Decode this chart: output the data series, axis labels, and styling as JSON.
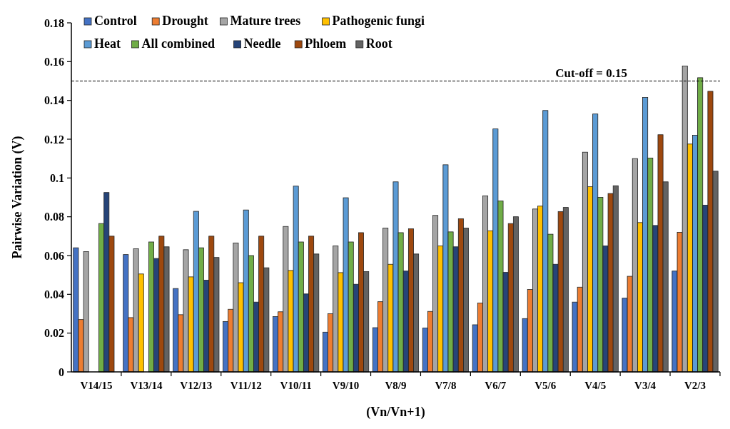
{
  "chart_data": {
    "type": "bar",
    "xlabel": "(Vn/Vn+1)",
    "ylabel": "Pairwise Variation (V)",
    "categories": [
      "V14/15",
      "V13/14",
      "V12/13",
      "V11/12",
      "V10/11",
      "V9/10",
      "V8/9",
      "V7/8",
      "V6/7",
      "V5/6",
      "V4/5",
      "V3/4",
      "V2/3"
    ],
    "series": [
      {
        "name": "Control",
        "color": "#4472c4",
        "values": [
          0.064,
          0.0605,
          0.043,
          0.026,
          0.0285,
          0.0205,
          0.0228,
          0.0226,
          0.0243,
          0.0275,
          0.036,
          0.038,
          0.052
        ]
      },
      {
        "name": "Drought",
        "color": "#ed7d31",
        "values": [
          0.027,
          0.028,
          0.0295,
          0.0323,
          0.031,
          0.03,
          0.0362,
          0.0312,
          0.0355,
          0.0425,
          0.0437,
          0.0493,
          0.072
        ]
      },
      {
        "name": "Mature trees",
        "color": "#a5a5a5",
        "values": [
          0.062,
          0.0635,
          0.063,
          0.0665,
          0.075,
          0.065,
          0.0742,
          0.0807,
          0.0908,
          0.084,
          0.1133,
          0.11,
          0.1577
        ]
      },
      {
        "name": "Pathogenic fungi",
        "color": "#ffc000",
        "values": [
          null,
          0.0505,
          0.049,
          0.046,
          0.0523,
          0.0512,
          0.0555,
          0.065,
          0.0728,
          0.0855,
          0.0955,
          0.077,
          0.1175
        ]
      },
      {
        "name": "Heat",
        "color": "#5b9bd5",
        "values": [
          null,
          null,
          0.0828,
          0.0835,
          0.0958,
          0.0898,
          0.098,
          0.1068,
          0.1253,
          0.1348,
          0.133,
          0.1415,
          0.122
        ]
      },
      {
        "name": "All combined",
        "color": "#70ad47",
        "values": [
          0.0765,
          0.067,
          0.064,
          0.06,
          0.067,
          0.067,
          0.0718,
          0.0722,
          0.0882,
          0.071,
          0.09,
          0.1103,
          0.1517
        ]
      },
      {
        "name": "Needle",
        "color": "#264478",
        "values": [
          0.0925,
          0.0585,
          0.0473,
          0.036,
          0.0402,
          0.0452,
          0.052,
          0.0645,
          0.0513,
          0.0555,
          0.065,
          0.0755,
          0.086
        ]
      },
      {
        "name": "Phloem",
        "color": "#9e480e",
        "values": [
          0.07,
          0.07,
          0.07,
          0.07,
          0.07,
          0.0718,
          0.0738,
          0.079,
          0.0765,
          0.0827,
          0.092,
          0.1223,
          0.1447
        ]
      },
      {
        "name": "Root",
        "color": "#636363",
        "values": [
          null,
          0.0645,
          0.059,
          0.0537,
          0.0608,
          0.0517,
          0.0608,
          0.0742,
          0.08,
          0.0848,
          0.096,
          0.098,
          0.1035
        ]
      }
    ],
    "ylim": [
      0,
      0.18
    ],
    "yticks": [
      0,
      0.02,
      0.04,
      0.06,
      0.08,
      0.1,
      0.12,
      0.14,
      0.16,
      0.18
    ],
    "ref_lines": [
      {
        "axis": "y",
        "value": 0.15,
        "label": "Cut-off = 0.15",
        "color": "#000000",
        "line_style": "dashed"
      }
    ],
    "legend": "top left"
  }
}
